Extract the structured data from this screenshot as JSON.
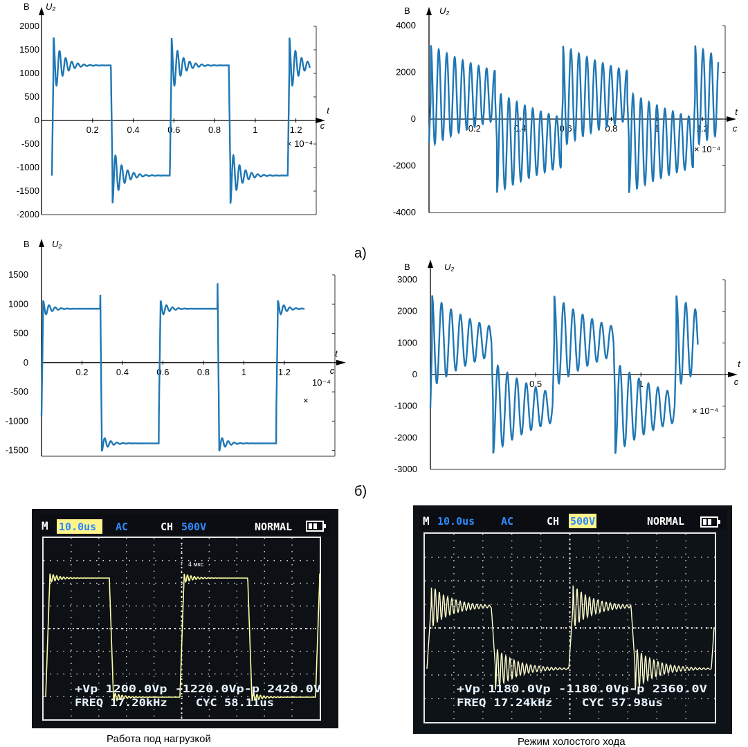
{
  "panel_labels": {
    "a": "а)",
    "b": "б)"
  },
  "colors": {
    "trace": "#1f77b4",
    "scope_trace": "#ffffa0",
    "scope_bg": "#0a0f14",
    "scope_grid": "#e8e8e8",
    "scope_blue": "#2e8bff",
    "scope_hl": "#fff48a"
  },
  "chart_data": [
    {
      "id": "a_left",
      "type": "line",
      "ylabel": "U₂",
      "yunit": "В",
      "xlabel": "t",
      "xunit": "с",
      "xscale": "× 10⁻⁴",
      "xlim": [
        0,
        1.3
      ],
      "ylim": [
        -2000,
        2000
      ],
      "yticks": [
        "2000",
        "1500",
        "1000",
        "500",
        "0",
        "-500",
        "-1000",
        "-1500",
        "-2000"
      ],
      "xticks": [
        "0.2",
        "0.4",
        "0.6",
        "0.8",
        "1",
        "1.2"
      ],
      "series": [
        {
          "period": 0.58,
          "t0": 0.0,
          "amplitude": 1170,
          "overshoot": 1880,
          "ring_period": 0.03,
          "ring_decay": 0.045,
          "t_end": 1.27
        }
      ]
    },
    {
      "id": "a_right",
      "type": "line",
      "ylabel": "U₂",
      "yunit": "В",
      "xlabel": "t",
      "xunit": "с",
      "xscale": "× 10⁻⁴",
      "xlim": [
        0,
        1.3
      ],
      "ylim": [
        -4000,
        4000
      ],
      "yticks": [
        "4000",
        "2000",
        "0",
        "-2000",
        "-4000"
      ],
      "xticks": [
        "0.2",
        "0.4",
        "0.6",
        "0.8",
        "1",
        "1.2"
      ],
      "series": [
        {
          "period": 0.58,
          "t0": 0.0,
          "amplitude": 1000,
          "overshoot": 3200,
          "ring_period": 0.035,
          "ring_decay": 0.4,
          "t_end": 1.27
        }
      ]
    },
    {
      "id": "b_left",
      "type": "line",
      "ylabel": "U₂",
      "yunit": "В",
      "xlabel": "t",
      "xunit": "с",
      "xscale": "10⁻⁴",
      "xscale_mark": "×",
      "xlim": [
        0,
        1.45
      ],
      "ylim": [
        -1600,
        1500
      ],
      "yticks": [
        "1500",
        "1000",
        "500",
        "0",
        "-500",
        "-1000",
        "-1500"
      ],
      "xticks": [
        "0.2",
        "0.4",
        "0.6",
        "0.8",
        "1",
        "1.2"
      ],
      "series": [
        {
          "period": 0.58,
          "t0": 0.0,
          "amplitude": 920,
          "amplitude_neg": 1380,
          "overshoot": 1100,
          "overshoot_neg": 1550,
          "ring_period": 0.03,
          "ring_decay": 0.035,
          "t_end": 1.3
        }
      ]
    },
    {
      "id": "b_right",
      "type": "line",
      "ylabel": "U₂",
      "yunit": "В",
      "xlabel": "t",
      "xunit": "с",
      "xscale": "× 10⁻⁴",
      "xlim": [
        0,
        1.4
      ],
      "ylim": [
        -3000,
        3000
      ],
      "yticks": [
        "3000",
        "2000",
        "1000",
        "0",
        "-1000",
        "-2000",
        "-3000"
      ],
      "xticks": [
        "0.5",
        "1"
      ],
      "series": [
        {
          "period": 0.58,
          "t0": 0.0,
          "amplitude": 1050,
          "overshoot": 2550,
          "ring_period": 0.045,
          "ring_decay": 0.25,
          "t_end": 1.27
        }
      ]
    }
  ],
  "scope_left": {
    "caption": "Работа под нагрузкой",
    "header": {
      "mode": "M",
      "timebase": "10.0us",
      "coupling": "AC",
      "ch": "CH",
      "volts": "500V",
      "trigger": "NORMAL"
    },
    "marker": "4 мкс",
    "line1": "+Vp 1200.0Vp -1220.0Vp-p 2420.0V",
    "line2": "FREQ 17.20kHz    CYC 58.11us"
  },
  "scope_right": {
    "caption": "Режим холостого хода",
    "header": {
      "mode": "M",
      "timebase": "10.0us",
      "coupling": "AC",
      "ch": "CH",
      "volts": "500V",
      "trigger": "NORMAL"
    },
    "line1": "+Vp 1180.0Vp -1180.0Vp-p 2360.0V",
    "line2": "FREQ 17.24kHz    CYC 57.98us"
  }
}
